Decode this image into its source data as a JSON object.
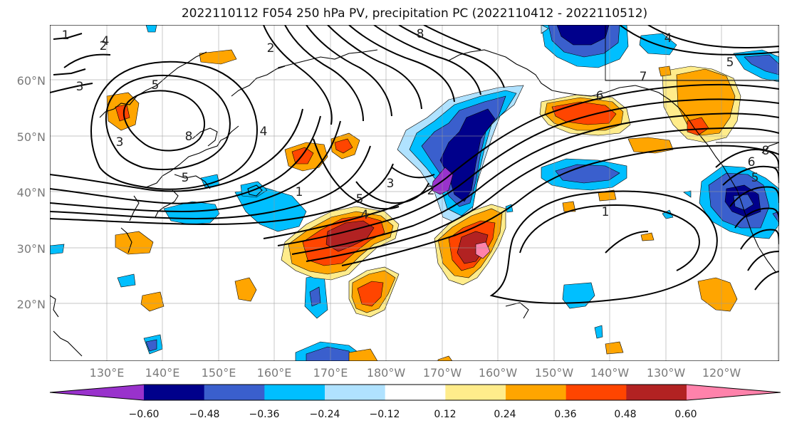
{
  "title": "2022110112 F054 250 hPa PV, precipitation PC (2022110412 - 2022110512)",
  "axes": {
    "lat_labels": [
      "60°N",
      "50°N",
      "40°N",
      "30°N",
      "20°N"
    ],
    "lon_labels": [
      "130°E",
      "140°E",
      "150°E",
      "160°E",
      "170°E",
      "180°W",
      "170°W",
      "160°W",
      "150°W",
      "140°W",
      "130°W",
      "120°W"
    ]
  },
  "colorbar": {
    "tick_labels": [
      "−0.60",
      "−0.48",
      "−0.36",
      "−0.24",
      "−0.12",
      "0.12",
      "0.24",
      "0.36",
      "0.48",
      "0.60"
    ],
    "colors": [
      "#9932CC",
      "#00008B",
      "#3A5FCD",
      "#00BFFF",
      "#B0E2FF",
      "#FFFFFF",
      "#FFEC8B",
      "#FFA500",
      "#FF4500",
      "#B22222",
      "#FF82AB"
    ]
  },
  "contour_labels": [
    {
      "text": "1"
    },
    {
      "text": "2"
    },
    {
      "text": "3"
    },
    {
      "text": "4"
    },
    {
      "text": "5"
    },
    {
      "text": "8"
    },
    {
      "text": "3"
    },
    {
      "text": "4"
    },
    {
      "text": "5"
    },
    {
      "text": "1"
    },
    {
      "text": "2"
    },
    {
      "text": "3"
    },
    {
      "text": "5"
    },
    {
      "text": "2"
    },
    {
      "text": "4"
    },
    {
      "text": "6"
    },
    {
      "text": "7"
    },
    {
      "text": "4"
    },
    {
      "text": "5"
    },
    {
      "text": "5"
    },
    {
      "text": "1"
    },
    {
      "text": "6"
    },
    {
      "text": "8"
    },
    {
      "text": "8"
    }
  ]
}
